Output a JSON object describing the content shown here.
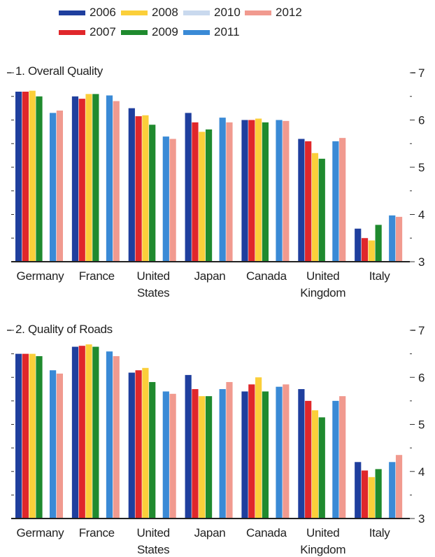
{
  "legend": [
    {
      "name": "2006",
      "color": "#1f3f9e"
    },
    {
      "name": "2007",
      "color": "#e0272b"
    },
    {
      "name": "2008",
      "color": "#fbcf3a"
    },
    {
      "name": "2009",
      "color": "#1f8a2e"
    },
    {
      "name": "2010",
      "color": "#c9d9ee"
    },
    {
      "name": "2011",
      "color": "#3a8ad6"
    },
    {
      "name": "2012",
      "color": "#f19a8f"
    }
  ],
  "chart_data": [
    {
      "type": "bar",
      "title": "1. Overall Quality",
      "categories": [
        "Germany",
        "France",
        "United States",
        "Japan",
        "Canada",
        "United Kingdom",
        "Italy"
      ],
      "category_labels": [
        [
          "Germany"
        ],
        [
          "France"
        ],
        [
          "United",
          "States"
        ],
        [
          "Japan"
        ],
        [
          "Canada"
        ],
        [
          "United",
          "Kingdom"
        ],
        [
          "Italy"
        ]
      ],
      "ylim": [
        3,
        7
      ],
      "yticks": [
        3,
        4,
        5,
        6,
        7
      ],
      "y_axis_side": "right",
      "series": [
        {
          "name": "2006",
          "color": "#1f3f9e",
          "values": [
            6.6,
            6.5,
            6.25,
            6.15,
            6.0,
            5.6,
            3.7
          ]
        },
        {
          "name": "2007",
          "color": "#e0272b",
          "values": [
            6.6,
            6.45,
            6.08,
            5.95,
            6.0,
            5.55,
            3.5
          ]
        },
        {
          "name": "2008",
          "color": "#fbcf3a",
          "values": [
            6.62,
            6.55,
            6.1,
            5.75,
            6.03,
            5.3,
            3.45
          ]
        },
        {
          "name": "2009",
          "color": "#1f8a2e",
          "values": [
            6.5,
            6.55,
            5.9,
            5.8,
            5.95,
            5.18,
            3.78
          ]
        },
        {
          "name": "2010",
          "color": "#c9d9ee",
          "values": [
            null,
            null,
            null,
            null,
            null,
            null,
            null
          ]
        },
        {
          "name": "2011",
          "color": "#3a8ad6",
          "values": [
            6.15,
            6.52,
            5.65,
            6.05,
            6.0,
            5.55,
            3.98
          ]
        },
        {
          "name": "2012",
          "color": "#f19a8f",
          "values": [
            6.2,
            6.4,
            5.6,
            5.95,
            5.98,
            5.62,
            3.95
          ]
        }
      ]
    },
    {
      "type": "bar",
      "title": "2. Quality of Roads",
      "categories": [
        "Germany",
        "France",
        "United States",
        "Japan",
        "Canada",
        "United Kingdom",
        "Italy"
      ],
      "category_labels": [
        [
          "Germany"
        ],
        [
          "France"
        ],
        [
          "United",
          "States"
        ],
        [
          "Japan"
        ],
        [
          "Canada"
        ],
        [
          "United",
          "Kingdom"
        ],
        [
          "Italy"
        ]
      ],
      "ylim": [
        3,
        7
      ],
      "yticks": [
        3,
        4,
        5,
        6,
        7
      ],
      "y_axis_side": "right",
      "series": [
        {
          "name": "2006",
          "color": "#1f3f9e",
          "values": [
            6.5,
            6.65,
            6.1,
            6.05,
            5.7,
            5.75,
            4.2
          ]
        },
        {
          "name": "2007",
          "color": "#e0272b",
          "values": [
            6.5,
            6.67,
            6.15,
            5.75,
            5.85,
            5.5,
            4.02
          ]
        },
        {
          "name": "2008",
          "color": "#fbcf3a",
          "values": [
            6.5,
            6.7,
            6.2,
            5.6,
            6.0,
            5.3,
            3.88
          ]
        },
        {
          "name": "2009",
          "color": "#1f8a2e",
          "values": [
            6.45,
            6.65,
            5.9,
            5.6,
            5.7,
            5.15,
            4.05
          ]
        },
        {
          "name": "2010",
          "color": "#c9d9ee",
          "values": [
            null,
            null,
            null,
            null,
            null,
            null,
            null
          ]
        },
        {
          "name": "2011",
          "color": "#3a8ad6",
          "values": [
            6.15,
            6.55,
            5.7,
            5.75,
            5.8,
            5.5,
            4.2
          ]
        },
        {
          "name": "2012",
          "color": "#f19a8f",
          "values": [
            6.08,
            6.45,
            5.65,
            5.9,
            5.85,
            5.6,
            4.35
          ]
        }
      ]
    }
  ]
}
